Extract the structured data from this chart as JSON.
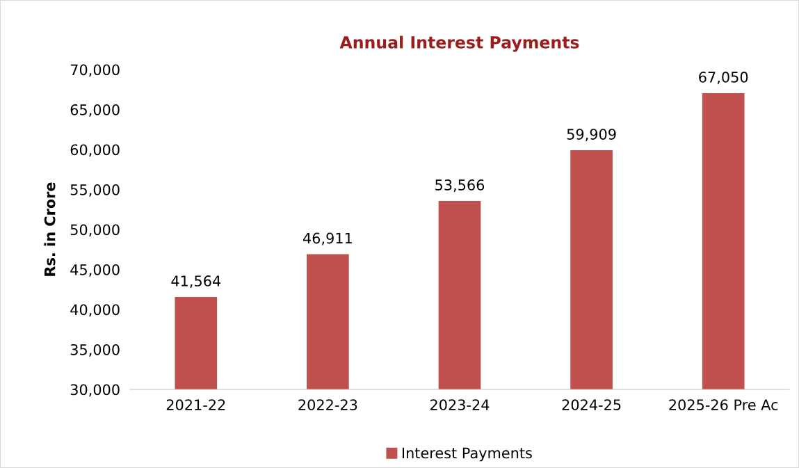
{
  "chart_data": {
    "type": "bar",
    "title": "Annual Interest Payments",
    "ylabel": "Rs. in Crore",
    "categories": [
      "2021-22",
      "2022-23",
      "2023-24",
      "2024-25",
      "2025-26 Pre Ac"
    ],
    "series": [
      {
        "name": "Interest Payments",
        "color": "#c0504d",
        "values": [
          41564,
          46911,
          53566,
          59909,
          67050
        ],
        "value_labels": [
          "41,564",
          "46,911",
          "53,566",
          "59,909",
          "67,050"
        ]
      }
    ],
    "ylim": [
      30000,
      70000
    ],
    "yticks": [
      {
        "value": 30000,
        "label": "30,000"
      },
      {
        "value": 35000,
        "label": "35,000"
      },
      {
        "value": 40000,
        "label": "40,000"
      },
      {
        "value": 45000,
        "label": "45,000"
      },
      {
        "value": 50000,
        "label": "50,000"
      },
      {
        "value": 55000,
        "label": "55,000"
      },
      {
        "value": 60000,
        "label": "60,000"
      },
      {
        "value": 65000,
        "label": "65,000"
      },
      {
        "value": 70000,
        "label": "70,000"
      }
    ],
    "grid": false,
    "legend": "bottom"
  }
}
